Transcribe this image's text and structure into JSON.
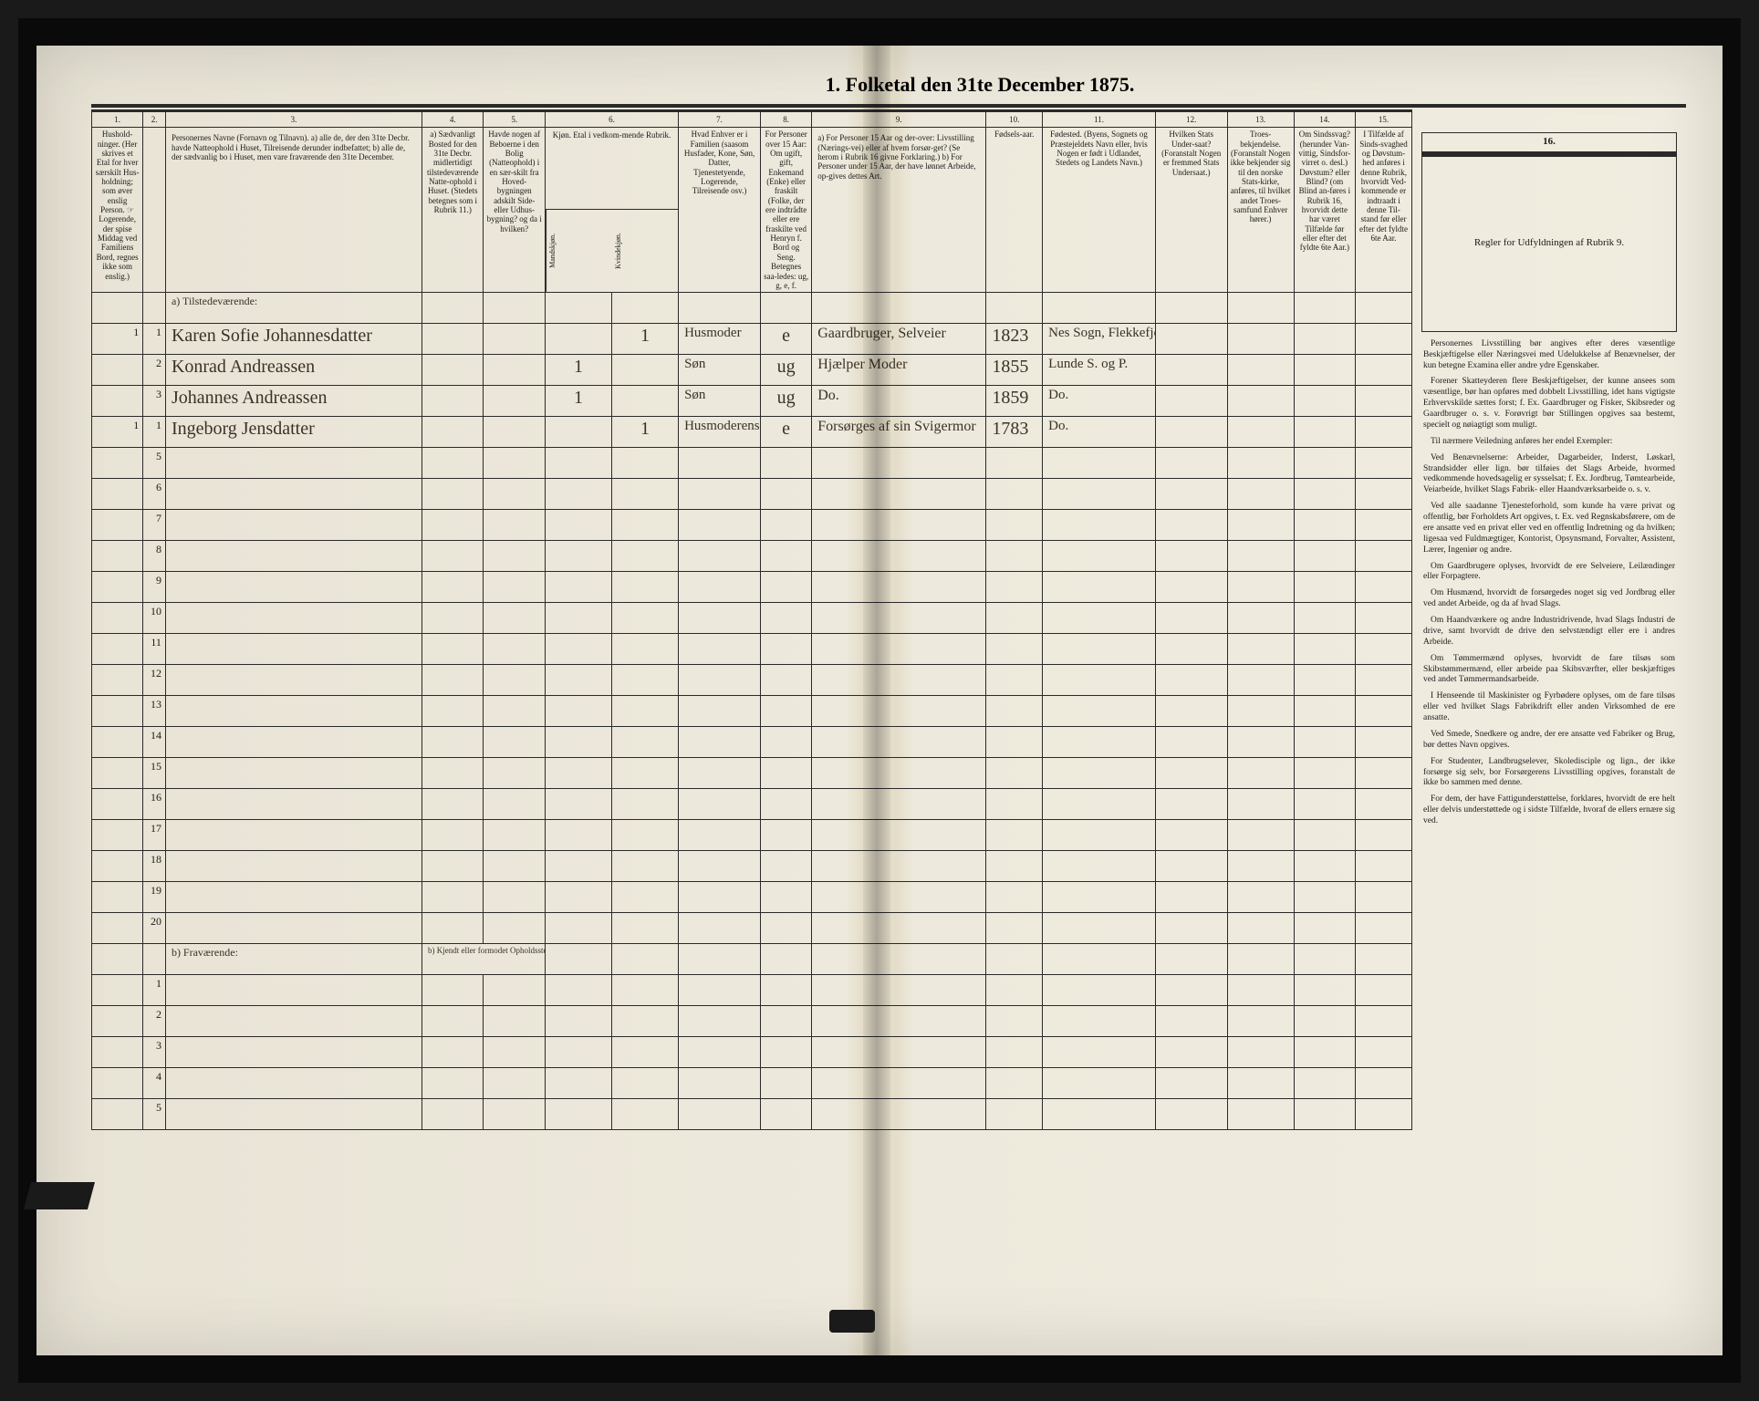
{
  "document": {
    "title": "1.  Folketal den 31te December 1875.",
    "background_color": "#ede9dc",
    "ink_color": "#1a1a1a",
    "handwriting_color": "#3a3228"
  },
  "columns": {
    "numbers": [
      "1.",
      "2.",
      "3.",
      "4.",
      "5.",
      "6.",
      "7.",
      "8.",
      "9.",
      "10.",
      "11.",
      "12.",
      "13.",
      "14.",
      "15.",
      "16."
    ],
    "headers": [
      "Hushold-\nninger.\n(Her skrives et\nEtal for hver\nsærskilt Hus-\nholdning; som\nøver enslig\nPerson.\n☞ Logerende, der\nspise Middag\nved Familiens\nBord, regnes ikke\nsom enslig.)",
      "",
      "Personernes Navne (Fornavn og Tilnavn).\n\na) alle de, der den 31te Decbr. havde Natteophold i Huset, Tilreisende derunder indbefattet;\n\nb) alle de, der sædvanlig bo i Huset, men vare fraværende den 31te December.",
      "a) Sædvanligt Bosted for den 31te Decbr. midlertidigt tilstedeværende Natte-ophold i Huset.\n(Stedets betegnes som i Rubrik 11.)",
      "Havde nogen af Beboerne i den Bolig (Natteophold) i en sær-skilt fra Hoved-bygningen adskilt Side- eller Udhus-bygning? og da i hvilken?",
      "Kjøn.\nEtal i vedkom-mende Rubrik.",
      "Hvad Enhver er i Familien\n(saasom Husfader, Kone, Søn, Datter, Tjenestetyende, Logerende, Tilreisende osv.)",
      "For Personer over 15 Aar: Om ugift, gift, Enkemand (Enke) eller fraskilt (Folke, der ere indtrådte eller ere fraskilte ved Henryn f. Bord og Seng.\nBetegnes saa-ledes: ug, g, e, f.",
      "a) For Personer 15 Aar og der-over: Livsstilling (Nærings-vei) eller af hvem forsør-get? (Se herom i Rubrik 16 givne Forklaring.)\n\nb) For Personer under 15 Aar, der have lønnet Arbeide, op-gives dettes Art.",
      "Fødsels-aar.",
      "Fødested.\n(Byens, Sognets og Præstejeldets Navn eller, hvis Nogen er født i Udlandet, Stedets og Landets Navn.)",
      "Hvilken Stats Under-saat?\n(Foranstalt Nogen er fremmed Stats Undersaat.)",
      "Troes-bekjendelse.\n(Foranstalt Nogen ikke bekjender sig til den norske Stats-kirke, anføres, til hvilket andet Troes-samfund Enhver hører.)",
      "Om Sindssvag? (herunder Van-vittig, Sindsfor-virret o. desl.) Døvstum? eller Blind? (om Blind an-føres i Rubrik 16, hvorvidt dette har været Tilfælde før eller efter det fyldte 6te Aar.)",
      "I Tilfælde af Sinds-svaghed og Døvstum-hed anføres i denne Rubrik, hvorvidt Ved-kommende er indtraadt i denne Til-stand før eller efter det fyldte 6te Aar."
    ],
    "col6_sub": [
      "Mandskjøn.",
      "Kvindekjøn."
    ]
  },
  "sections": {
    "a_label": "a) Tilstedeværende:",
    "b_label": "b) Fraværende:",
    "b_col4_label": "b) Kjendt eller formodet Opholdssted."
  },
  "rows": [
    {
      "n": "1",
      "hh": "1",
      "name": "Karen Sofie Johannesdatter",
      "c6a": "",
      "c6b": "1",
      "c7": "Husmoder",
      "c8": "e",
      "c9": "Gaardbruger, Selveier",
      "c10": "1823",
      "c11": "Nes Sogn, Flekkefjord"
    },
    {
      "n": "2",
      "hh": "",
      "name": "Konrad Andreassen",
      "c6a": "1",
      "c6b": "",
      "c7": "Søn",
      "c8": "ug",
      "c9": "Hjælper Moder",
      "c10": "1855",
      "c11": "Lunde S. og P."
    },
    {
      "n": "3",
      "hh": "",
      "name": "Johannes Andreassen",
      "c6a": "1",
      "c6b": "",
      "c7": "Søn",
      "c8": "ug",
      "c9": "Do.",
      "c10": "1859",
      "c11": "Do."
    },
    {
      "n": "1",
      "hh": "1",
      "name": "Ingeborg Jensdatter",
      "c6a": "",
      "c6b": "1",
      "c7": "Husmoderens Svigerm.",
      "c8": "e",
      "c9": "Forsørges af sin Svigermor",
      "c10": "1783",
      "c11": "Do."
    }
  ],
  "empty_rows_a": [
    5,
    6,
    7,
    8,
    9,
    10,
    11,
    12,
    13,
    14,
    15,
    16,
    17,
    18,
    19,
    20
  ],
  "empty_rows_b": [
    1,
    2,
    3,
    4,
    5
  ],
  "side_panel": {
    "colnum": "16.",
    "heading": "Regler for Udfyldningen\naf\nRubrik 9.",
    "paragraphs": [
      "Personernes Livsstilling bør angives efter deres væsentlige Beskjæftigelse eller Næringsvei med Udelukkelse af Benævnelser, der kun betegne Examina eller andre ydre Egenskaber.",
      "Forener Skatteyderen flere Beskjæftigelser, der kunne ansees som væsentlige, bør han opføres med dobbelt Livsstilling, idet hans vigtigste Erhvervskilde sættes forst; f. Ex. Gaardbruger og Fisker, Skibsreder og Gaardbruger o. s. v. Forøvrigt bør Stillingen opgives saa bestemt, specielt og nøiagtigt som muligt.",
      "Til nærmere Veiledning anføres her endel Exempler:",
      "Ved Benævnelserne: Arbeider, Dagarbeider, Inderst, Løskarl, Strandsidder eller lign. bør tilføies det Slags Arbeide, hvormed vedkommende hovedsagelig er sysselsat; f. Ex. Jordbrug, Tømtearbeide, Veiarbeide, hvilket Slags Fabrik- eller Haandværksarbeide o. s. v.",
      "Ved alle saadanne Tjenesteforhold, som kunde ha være privat og offentlig, bør Forholdets Art opgives, t. Ex. ved Regnskabsførere, om de ere ansatte ved en privat eller ved en offentlig Indretning og da hvilken; ligesaa ved Fuldmægtiger, Kontorist, Opsynsmand, Forvalter, Assistent, Lærer, Ingeniør og andre.",
      "Om Gaardbrugere oplyses, hvorvidt de ere Selveiere, Leilændinger eller Forpagtere.",
      "Om Husmænd, hvorvidt de forsørgedes noget sig ved Jordbrug eller ved andet Arbeide, og da af hvad Slags.",
      "Om Haandværkere og andre Industridrivende, hvad Slags Industri de drive, samt hvorvidt de drive den selvstændigt eller ere i andres Arbeide.",
      "Om Tømmermænd oplyses, hvorvidt de fare tilsøs som Skibstømmermænd, eller arbeide paa Skibsværfter, eller beskjæftiges ved andet Tømmermandsarbeide.",
      "I Henseende til Maskinister og Fyrbødere oplyses, om de fare tilsøs eller ved hvilket Slags Fabrikdrift eller anden Virksomhed de ere ansatte.",
      "Ved Smede, Snedkere og andre, der ere ansatte ved Fabriker og Brug, bør dettes Navn opgives.",
      "For Studenter, Landbrugselever, Skoledisciple og lign., der ikke forsørge sig selv, bor Forsørgerens Livsstilling opgives, foranstalt de ikke bo sammen med denne.",
      "For dem, der have Fattigunderstøttelse, forklares, hvorvidt de ere helt eller delvis understøttede og i sidste Tilfælde, hvoraf de ellers ernære sig ved."
    ]
  }
}
